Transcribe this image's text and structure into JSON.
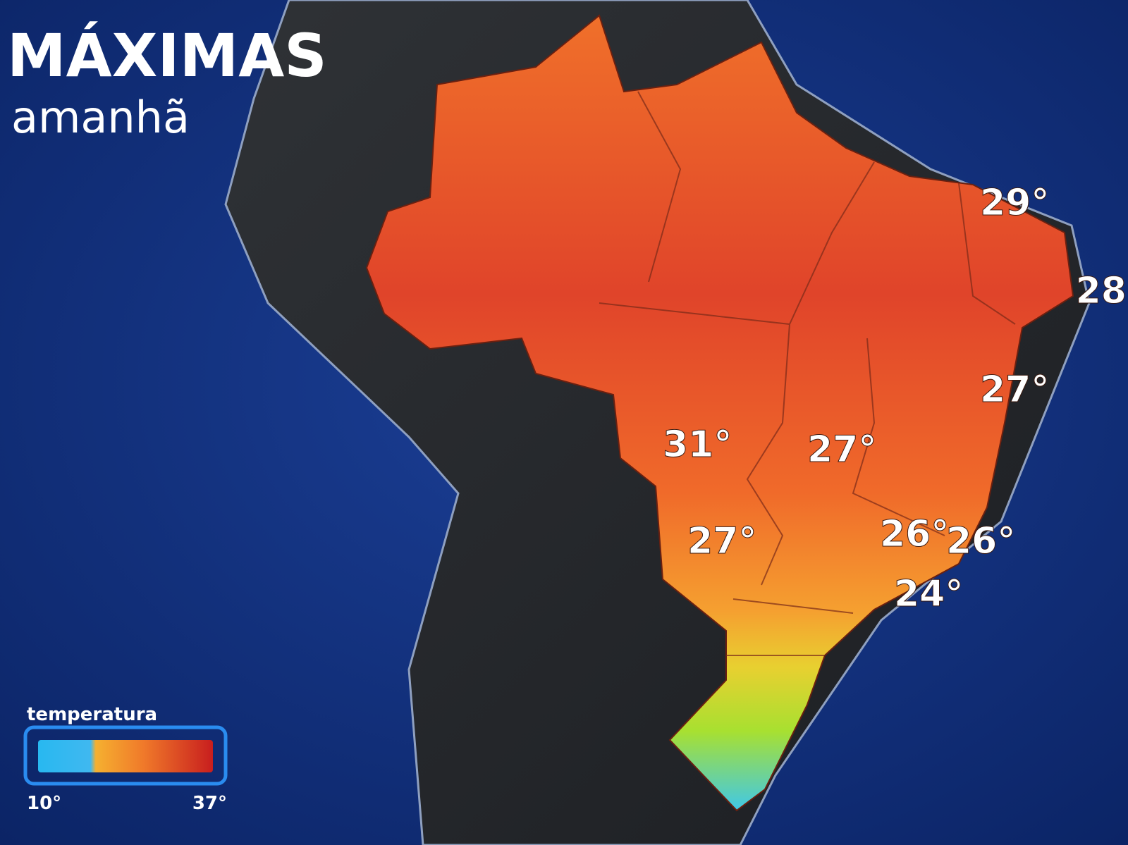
{
  "header": {
    "title": "MÁXIMAS",
    "subtitle": "amanhã"
  },
  "city_labels": [
    "29°",
    "28",
    "27°",
    "31°",
    "27°",
    "27°",
    "26°",
    "26°",
    "24°"
  ],
  "legend": {
    "title": "temperatura",
    "min_label": "10°",
    "max_label": "37°"
  }
}
